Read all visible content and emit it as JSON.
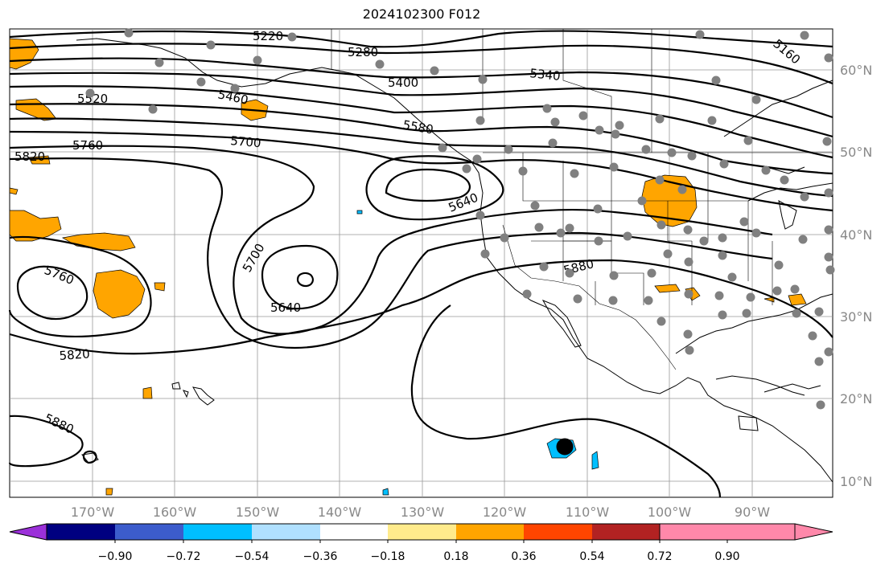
{
  "title": "2024102300 F012",
  "lon_labels": [
    "170°W",
    "160°W",
    "150°W",
    "140°W",
    "130°W",
    "120°W",
    "110°W",
    "100°W",
    "90°W"
  ],
  "lat_labels": [
    "60°N",
    "50°N",
    "40°N",
    "30°N",
    "20°N",
    "10°N"
  ],
  "contour_labels": [
    "5220",
    "5280",
    "5160",
    "5400",
    "5340",
    "5520",
    "5460",
    "5580",
    "5760",
    "5700",
    "5820",
    "5640",
    "5760",
    "5700",
    "5640",
    "5880",
    "5820",
    "5880"
  ],
  "colorbar": {
    "ticks": [
      "−0.90",
      "−0.72",
      "−0.54",
      "−0.36",
      "−0.18",
      "0.18",
      "0.36",
      "0.54",
      "0.72",
      "0.90"
    ],
    "colors": [
      "#9b30d9",
      "#000080",
      "#3c5ccc",
      "#00bfff",
      "#b0e0ff",
      "#ffffff",
      "#ffeb8c",
      "#ffa500",
      "#ff4500",
      "#b22222",
      "#ff88aa"
    ]
  },
  "colors": {
    "land_fill": "#ffa500",
    "grid": "#999999",
    "contour": "#000000",
    "station": "#808080"
  }
}
